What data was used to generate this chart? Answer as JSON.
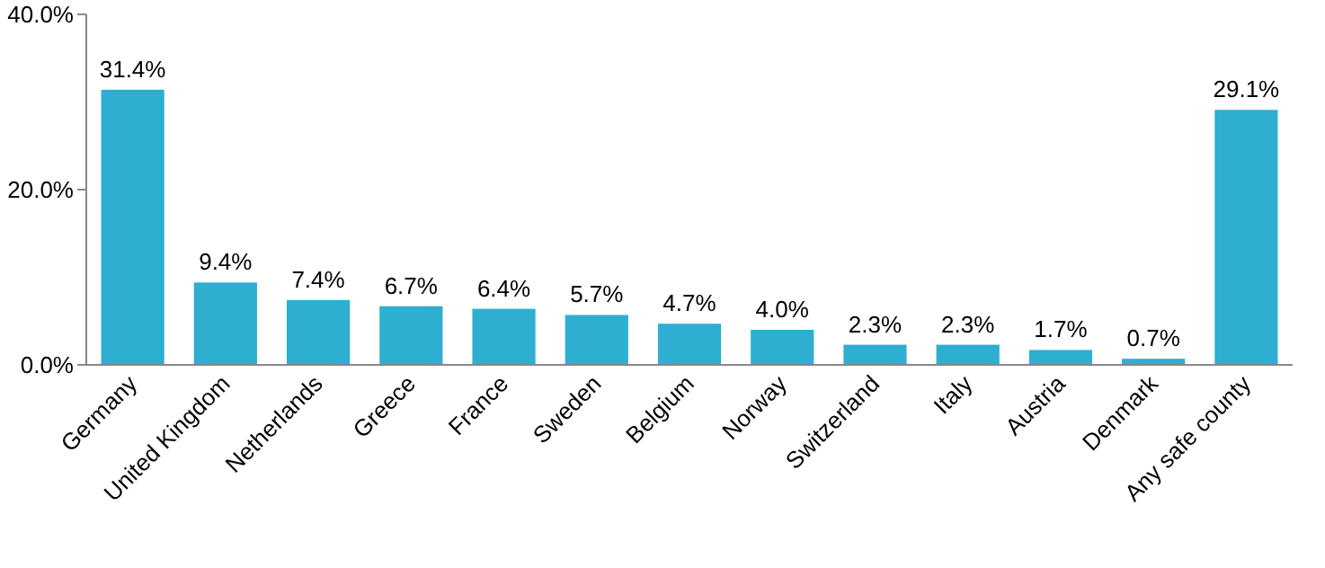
{
  "chart_data": {
    "type": "bar",
    "categories": [
      "Germany",
      "United Kingdom",
      "Netherlands",
      "Greece",
      "France",
      "Sweden",
      "Belgium",
      "Norway",
      "Switzerland",
      "Italy",
      "Austria",
      "Denmark",
      "Any safe county"
    ],
    "values": [
      31.4,
      9.4,
      7.4,
      6.7,
      6.4,
      5.7,
      4.7,
      4.0,
      2.3,
      2.3,
      1.7,
      0.7,
      29.1
    ],
    "value_labels": [
      "31.4%",
      "9.4%",
      "7.4%",
      "6.7%",
      "6.4%",
      "5.7%",
      "4.7%",
      "4.0%",
      "2.3%",
      "2.3%",
      "1.7%",
      "0.7%",
      "29.1%"
    ],
    "color": "#2eaed1",
    "ylim": [
      0,
      40
    ],
    "yticks": [
      {
        "value": 0,
        "label": "0.0%"
      },
      {
        "value": 20,
        "label": "20.0%"
      },
      {
        "value": 40,
        "label": "40.0%"
      }
    ],
    "grid": false
  }
}
